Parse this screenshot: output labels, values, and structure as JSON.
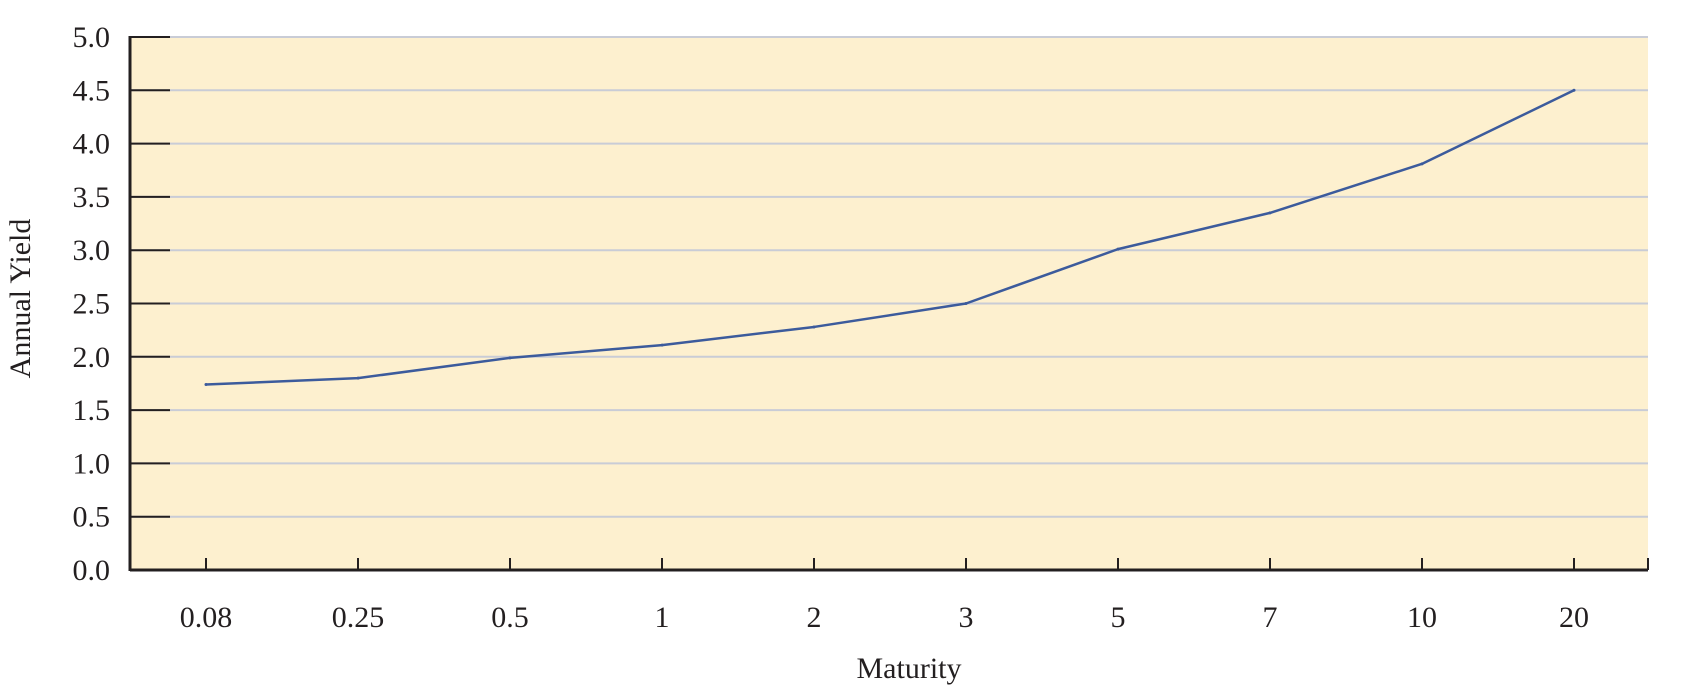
{
  "chart_data": {
    "type": "line",
    "title": "",
    "xlabel": "Maturity",
    "ylabel": "Annual Yield",
    "categories": [
      "0.08",
      "0.25",
      "0.5",
      "1",
      "2",
      "3",
      "5",
      "7",
      "10",
      "20"
    ],
    "series": [
      {
        "values": [
          1.74,
          1.8,
          1.99,
          2.11,
          2.28,
          2.5,
          3.01,
          3.35,
          3.81,
          4.5
        ]
      }
    ],
    "ylim": [
      0,
      5.0
    ],
    "yticks": [
      "0.0",
      "0.5",
      "1.0",
      "1.5",
      "2.0",
      "2.5",
      "3.0",
      "3.5",
      "4.0",
      "4.5",
      "5.0"
    ],
    "grid": true,
    "legend": "none",
    "colors": {
      "plot_background": "#fdf0cf",
      "gridline": "#c9ccd6",
      "line": "#3c5b9c",
      "axis": "#231f20",
      "text": "#231f20"
    }
  }
}
